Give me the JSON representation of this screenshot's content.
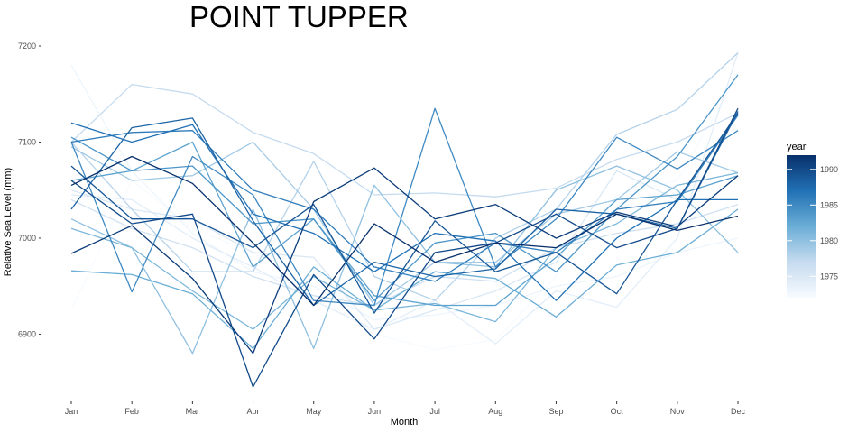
{
  "chart_data": {
    "type": "line",
    "title": "POINT TUPPER",
    "xlabel": "Month",
    "ylabel": "Relative Sea Level (mm)",
    "categories": [
      "Jan",
      "Feb",
      "Mar",
      "Apr",
      "May",
      "Jun",
      "Jul",
      "Aug",
      "Sep",
      "Oct",
      "Nov",
      "Dec"
    ],
    "y_ticks": [
      6900,
      7000,
      7100,
      7200
    ],
    "ylim": [
      6845,
      7200
    ],
    "grid": false,
    "legend": {
      "title": "year",
      "placement": "right",
      "type": "colorbar",
      "range": [
        1972,
        1992
      ],
      "ticks": [
        1975,
        1980,
        1985,
        1990
      ],
      "color_low": "#f7fbff",
      "color_high": "#08306b"
    },
    "series": [
      {
        "year": 1972,
        "values": [
          6925,
          7060,
          7010,
          6985,
          6960,
          6900,
          6884,
          6894,
          6960,
          7045,
          7060,
          7170
        ]
      },
      {
        "year": 1973,
        "values": [
          7180,
          7070,
          7005,
          6965,
          6950,
          6915,
          6920,
          6930,
          6950,
          6960,
          6985,
          7000
        ]
      },
      {
        "year": 1974,
        "values": [
          7045,
          7040,
          7000,
          6970,
          6935,
          6905,
          6935,
          6890,
          6945,
          6928,
          7000,
          7193
        ]
      },
      {
        "year": 1975,
        "values": [
          7050,
          7030,
          7020,
          6985,
          6980,
          6905,
          6925,
          6945,
          6975,
          7070,
          7040,
          7130
        ]
      },
      {
        "year": 1976,
        "values": [
          7040,
          7010,
          6990,
          6960,
          6940,
          6930,
          6960,
          6955,
          6990,
          7005,
          7015,
          7035
        ]
      },
      {
        "year": 1977,
        "values": [
          7100,
          7160,
          7150,
          7110,
          7088,
          7045,
          7047,
          7043,
          7052,
          7082,
          7100,
          7130
        ]
      },
      {
        "year": 1978,
        "values": [
          7100,
          7030,
          6965,
          6965,
          7080,
          6960,
          6935,
          7000,
          7030,
          7108,
          7134,
          7193
        ]
      },
      {
        "year": 1979,
        "values": [
          7095,
          7060,
          7065,
          7100,
          7030,
          6930,
          6975,
          6975,
          7025,
          7040,
          7090,
          7068
        ]
      },
      {
        "year": 1980,
        "values": [
          7020,
          6990,
          6880,
          7030,
          6885,
          7055,
          6975,
          6970,
          7050,
          7075,
          7050,
          6985
        ]
      },
      {
        "year": 1981,
        "values": [
          7010,
          6990,
          6945,
          6905,
          6960,
          6925,
          6932,
          6913,
          6990,
          7015,
          7055,
          7068
        ]
      },
      {
        "year": 1982,
        "values": [
          6966,
          6962,
          6942,
          6885,
          6970,
          6925,
          6965,
          6958,
          6918,
          6972,
          6985,
          7030
        ]
      },
      {
        "year": 1983,
        "values": [
          7060,
          7070,
          7100,
          6970,
          7020,
          6940,
          6930,
          6930,
          6980,
          7040,
          7045,
          7065
        ]
      },
      {
        "year": 1984,
        "values": [
          7105,
          7070,
          7075,
          7015,
          7020,
          6935,
          6995,
          7005,
          6965,
          7030,
          7085,
          7170
        ]
      },
      {
        "year": 1985,
        "values": [
          7100,
          6944,
          7085,
          7045,
          6935,
          6930,
          7135,
          6970,
          7020,
          7105,
          7072,
          7112
        ]
      },
      {
        "year": 1986,
        "values": [
          7100,
          7110,
          7112,
          7050,
          7030,
          6970,
          6955,
          6995,
          6985,
          7030,
          7038,
          7128
        ]
      },
      {
        "year": 1987,
        "values": [
          7120,
          7100,
          7118,
          7025,
          7005,
          6965,
          7005,
          6997,
          6935,
          7000,
          7040,
          7040
        ]
      },
      {
        "year": 1988,
        "values": [
          7030,
          7115,
          7125,
          7018,
          6930,
          6975,
          6960,
          6968,
          7030,
          7025,
          7010,
          7132
        ]
      },
      {
        "year": 1989,
        "values": [
          7075,
          7020,
          7020,
          6990,
          7035,
          6922,
          7018,
          6965,
          6985,
          6942,
          7040,
          7130
        ]
      },
      {
        "year": 1990,
        "values": [
          7060,
          7015,
          7025,
          6845,
          6962,
          6895,
          6985,
          6995,
          7025,
          6990,
          7010,
          7135
        ]
      },
      {
        "year": 1991,
        "values": [
          6984,
          7013,
          6958,
          6880,
          7038,
          7073,
          7020,
          7035,
          7000,
          7027,
          7012,
          7065
        ]
      },
      {
        "year": 1992,
        "values": [
          7055,
          7085,
          7057,
          6995,
          6930,
          7015,
          6975,
          6995,
          6990,
          7025,
          7008,
          7023
        ]
      }
    ]
  }
}
